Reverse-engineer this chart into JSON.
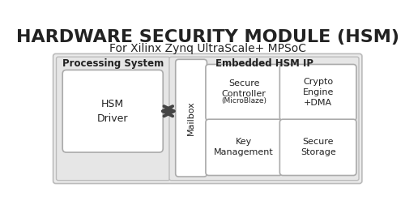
{
  "title": "HARDWARE SECURITY MODULE (HSM)",
  "subtitle": "For Xilinx Zynq UltraScale+ MPSoC",
  "title_fontsize": 16,
  "subtitle_fontsize": 10,
  "title_color": "#222222",
  "bg_color": "#ffffff",
  "section_bg": "#ebebeb",
  "box_fill": "#ffffff",
  "box_edge": "#999999",
  "section_edge": "#bbbbbb",
  "ps_label": "Processing System",
  "hsm_label": "Embedded HSM IP",
  "driver_label": "HSM\nDriver",
  "mailbox_label": "Mailbox",
  "cell_labels": [
    "Secure\nController\n(MicroBlaze)",
    "Crypto\nEngine\n+DMA",
    "Key\nManagement",
    "Secure\nStorage"
  ],
  "arrow_color": "#444444",
  "cell_fontsize": 8,
  "section_label_fontsize": 8.5,
  "driver_fontsize": 9
}
